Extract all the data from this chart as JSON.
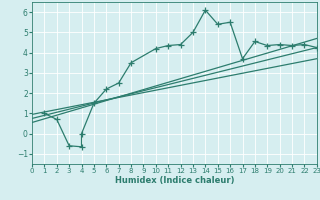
{
  "xlabel": "Humidex (Indice chaleur)",
  "bg_color": "#d6eef0",
  "grid_color": "#ffffff",
  "line_color": "#2d7d6e",
  "xlim": [
    0,
    23
  ],
  "ylim": [
    -1.5,
    6.5
  ],
  "xticks": [
    0,
    1,
    2,
    3,
    4,
    5,
    6,
    7,
    8,
    9,
    10,
    11,
    12,
    13,
    14,
    15,
    16,
    17,
    18,
    19,
    20,
    21,
    22,
    23
  ],
  "yticks": [
    -1,
    0,
    1,
    2,
    3,
    4,
    5,
    6
  ],
  "scatter_x": [
    1,
    2,
    3,
    4,
    4,
    5,
    6,
    7,
    8,
    10,
    11,
    12,
    13,
    14,
    15,
    16,
    17,
    18,
    19,
    20,
    21,
    22,
    23
  ],
  "scatter_y": [
    1.0,
    0.7,
    -0.6,
    -0.65,
    0.0,
    1.5,
    2.2,
    2.5,
    3.5,
    4.2,
    4.35,
    4.4,
    5.0,
    6.1,
    5.4,
    5.5,
    3.7,
    4.55,
    4.35,
    4.4,
    4.35,
    4.4,
    4.25
  ],
  "line1_x": [
    0,
    23
  ],
  "line1_y": [
    0.75,
    4.25
  ],
  "line2_x": [
    0,
    23
  ],
  "line2_y": [
    0.55,
    4.7
  ],
  "line3_x": [
    0,
    23
  ],
  "line3_y": [
    0.95,
    3.7
  ]
}
